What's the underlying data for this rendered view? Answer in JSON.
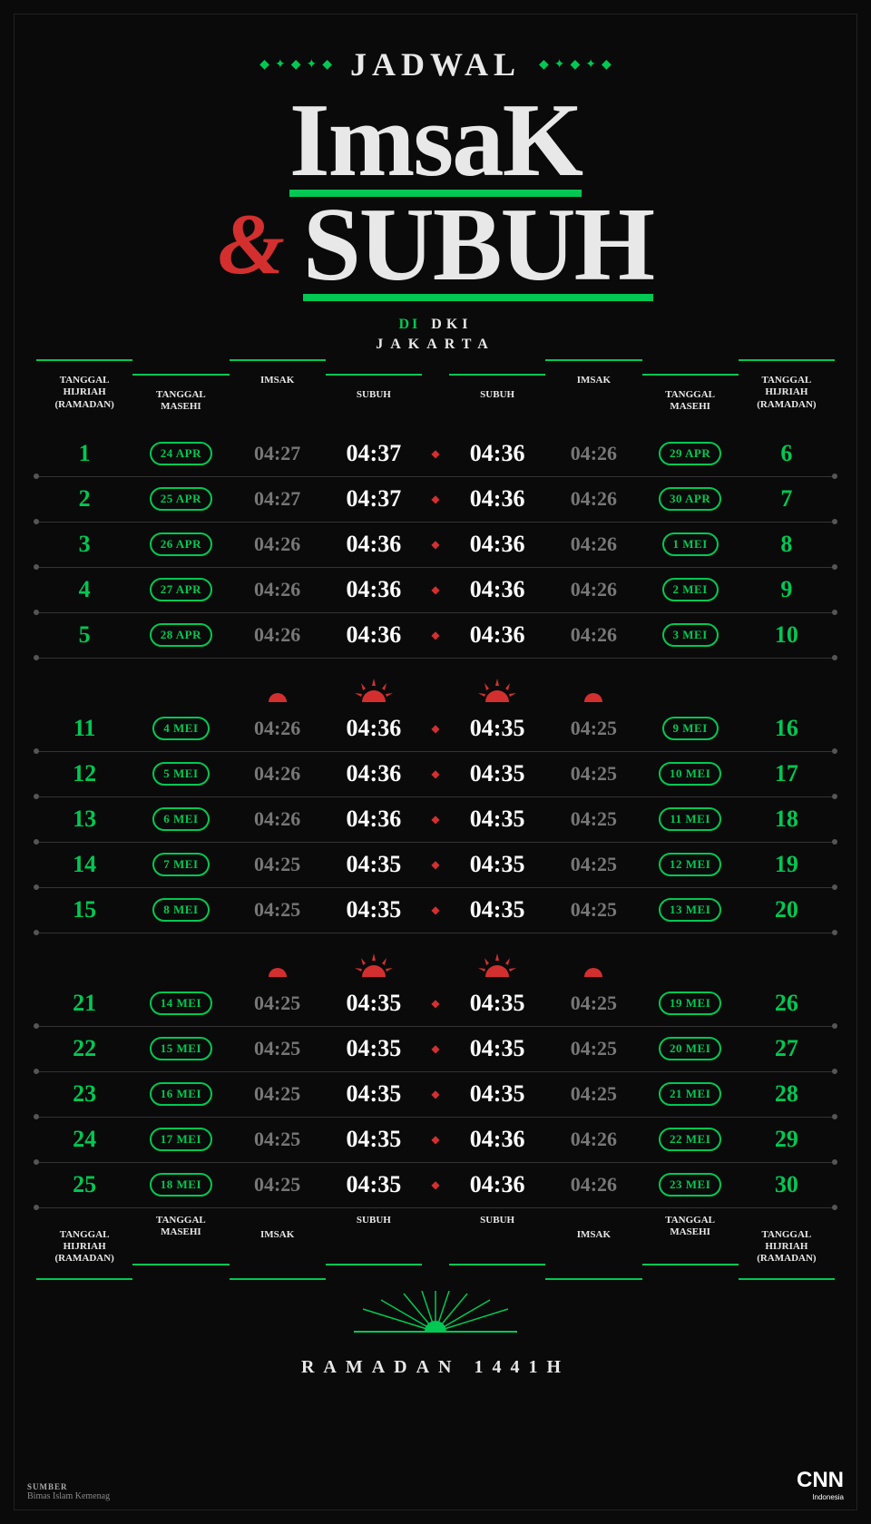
{
  "colors": {
    "background": "#0a0a0a",
    "green": "#00c853",
    "red": "#d32f2f",
    "white": "#e8e8e8",
    "grey": "#777777",
    "divider": "#333333"
  },
  "header": {
    "overline": "JADWAL",
    "title1": "ImsaK",
    "amp": "&",
    "title2": "SUBUH",
    "loc_di": "DI",
    "loc_dki": "DKI",
    "loc_city": "JAKARTA"
  },
  "column_headers": {
    "hijriah": "TANGGAL HIJRIAH (RAMADAN)",
    "masehi": "TANGGAL MASEHI",
    "imsak": "IMSAK",
    "subuh": "SUBUH"
  },
  "blocks": [
    {
      "rows": [
        {
          "left": {
            "hijriah": "1",
            "masehi": "24 APR",
            "imsak": "04:27",
            "subuh": "04:37"
          },
          "right": {
            "subuh": "04:36",
            "imsak": "04:26",
            "masehi": "29 APR",
            "hijriah": "6"
          }
        },
        {
          "left": {
            "hijriah": "2",
            "masehi": "25 APR",
            "imsak": "04:27",
            "subuh": "04:37"
          },
          "right": {
            "subuh": "04:36",
            "imsak": "04:26",
            "masehi": "30 APR",
            "hijriah": "7"
          }
        },
        {
          "left": {
            "hijriah": "3",
            "masehi": "26 APR",
            "imsak": "04:26",
            "subuh": "04:36"
          },
          "right": {
            "subuh": "04:36",
            "imsak": "04:26",
            "masehi": "1 MEI",
            "hijriah": "8"
          }
        },
        {
          "left": {
            "hijriah": "4",
            "masehi": "27 APR",
            "imsak": "04:26",
            "subuh": "04:36"
          },
          "right": {
            "subuh": "04:36",
            "imsak": "04:26",
            "masehi": "2 MEI",
            "hijriah": "9"
          }
        },
        {
          "left": {
            "hijriah": "5",
            "masehi": "28 APR",
            "imsak": "04:26",
            "subuh": "04:36"
          },
          "right": {
            "subuh": "04:36",
            "imsak": "04:26",
            "masehi": "3 MEI",
            "hijriah": "10"
          }
        }
      ]
    },
    {
      "rows": [
        {
          "left": {
            "hijriah": "11",
            "masehi": "4 MEI",
            "imsak": "04:26",
            "subuh": "04:36"
          },
          "right": {
            "subuh": "04:35",
            "imsak": "04:25",
            "masehi": "9 MEI",
            "hijriah": "16"
          }
        },
        {
          "left": {
            "hijriah": "12",
            "masehi": "5 MEI",
            "imsak": "04:26",
            "subuh": "04:36"
          },
          "right": {
            "subuh": "04:35",
            "imsak": "04:25",
            "masehi": "10 MEI",
            "hijriah": "17"
          }
        },
        {
          "left": {
            "hijriah": "13",
            "masehi": "6 MEI",
            "imsak": "04:26",
            "subuh": "04:36"
          },
          "right": {
            "subuh": "04:35",
            "imsak": "04:25",
            "masehi": "11 MEI",
            "hijriah": "18"
          }
        },
        {
          "left": {
            "hijriah": "14",
            "masehi": "7 MEI",
            "imsak": "04:25",
            "subuh": "04:35"
          },
          "right": {
            "subuh": "04:35",
            "imsak": "04:25",
            "masehi": "12 MEI",
            "hijriah": "19"
          }
        },
        {
          "left": {
            "hijriah": "15",
            "masehi": "8 MEI",
            "imsak": "04:25",
            "subuh": "04:35"
          },
          "right": {
            "subuh": "04:35",
            "imsak": "04:25",
            "masehi": "13 MEI",
            "hijriah": "20"
          }
        }
      ]
    },
    {
      "rows": [
        {
          "left": {
            "hijriah": "21",
            "masehi": "14 MEI",
            "imsak": "04:25",
            "subuh": "04:35"
          },
          "right": {
            "subuh": "04:35",
            "imsak": "04:25",
            "masehi": "19 MEI",
            "hijriah": "26"
          }
        },
        {
          "left": {
            "hijriah": "22",
            "masehi": "15 MEI",
            "imsak": "04:25",
            "subuh": "04:35"
          },
          "right": {
            "subuh": "04:35",
            "imsak": "04:25",
            "masehi": "20 MEI",
            "hijriah": "27"
          }
        },
        {
          "left": {
            "hijriah": "23",
            "masehi": "16 MEI",
            "imsak": "04:25",
            "subuh": "04:35"
          },
          "right": {
            "subuh": "04:35",
            "imsak": "04:25",
            "masehi": "21 MEI",
            "hijriah": "28"
          }
        },
        {
          "left": {
            "hijriah": "24",
            "masehi": "17 MEI",
            "imsak": "04:25",
            "subuh": "04:35"
          },
          "right": {
            "subuh": "04:36",
            "imsak": "04:26",
            "masehi": "22 MEI",
            "hijriah": "29"
          }
        },
        {
          "left": {
            "hijriah": "25",
            "masehi": "18 MEI",
            "imsak": "04:25",
            "subuh": "04:35"
          },
          "right": {
            "subuh": "04:36",
            "imsak": "04:26",
            "masehi": "23 MEI",
            "hijriah": "30"
          }
        }
      ]
    }
  ],
  "footer": {
    "text": "RAMADAN 1441H",
    "source_label": "SUMBER",
    "source_text": "Bimas Islam Kemenag",
    "logo": "CNN",
    "logo_sub": "Indonesia"
  }
}
